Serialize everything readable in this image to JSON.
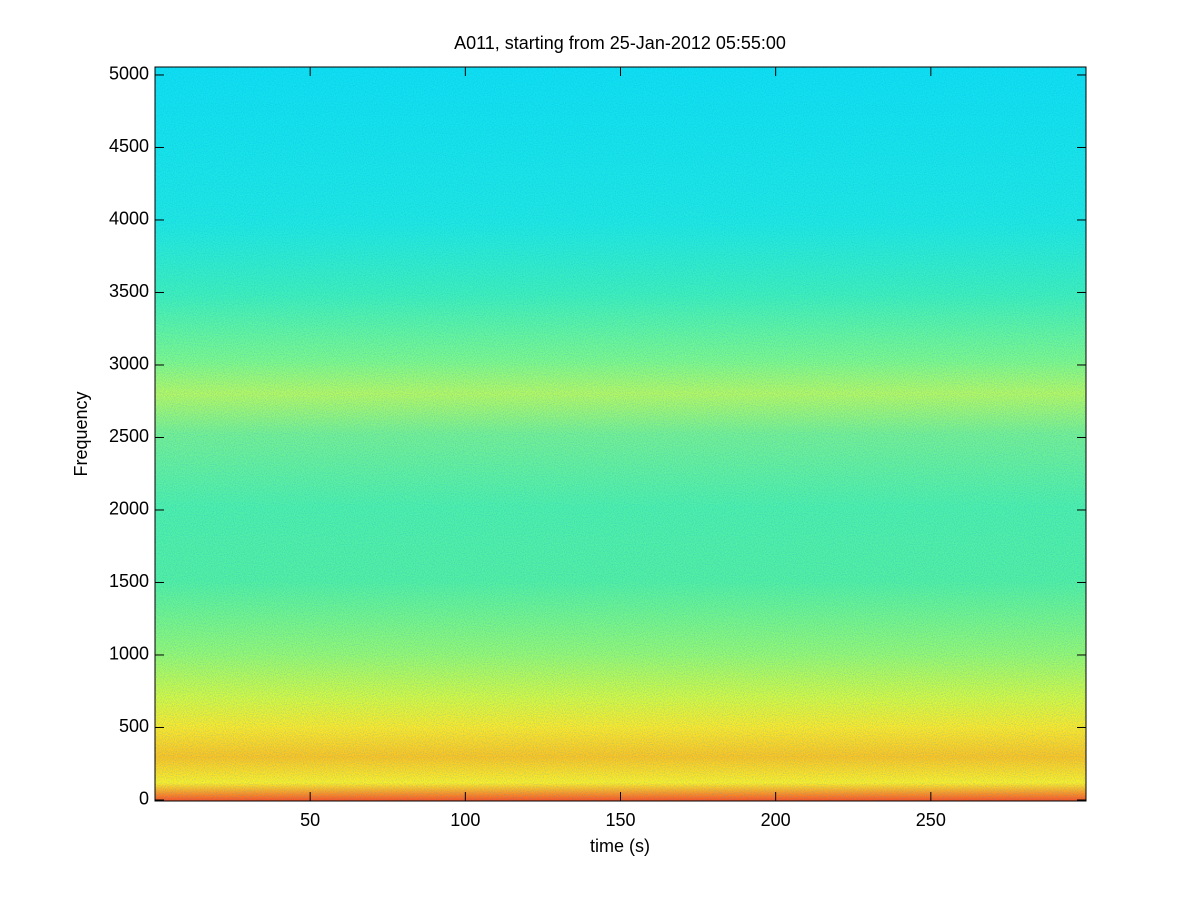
{
  "chart_data": {
    "type": "spectrogram",
    "title": "A011, starting from 25-Jan-2012 05:55:00",
    "x_label": "time (s)",
    "y_label": "Frequency",
    "xlim": [
      0,
      300
    ],
    "xticks": [
      50,
      100,
      150,
      200,
      250
    ],
    "ylim": [
      -7,
      5055
    ],
    "yticks": [
      0,
      500,
      1000,
      1500,
      2000,
      2500,
      3000,
      3500,
      4000,
      4500,
      5000
    ]
  }
}
